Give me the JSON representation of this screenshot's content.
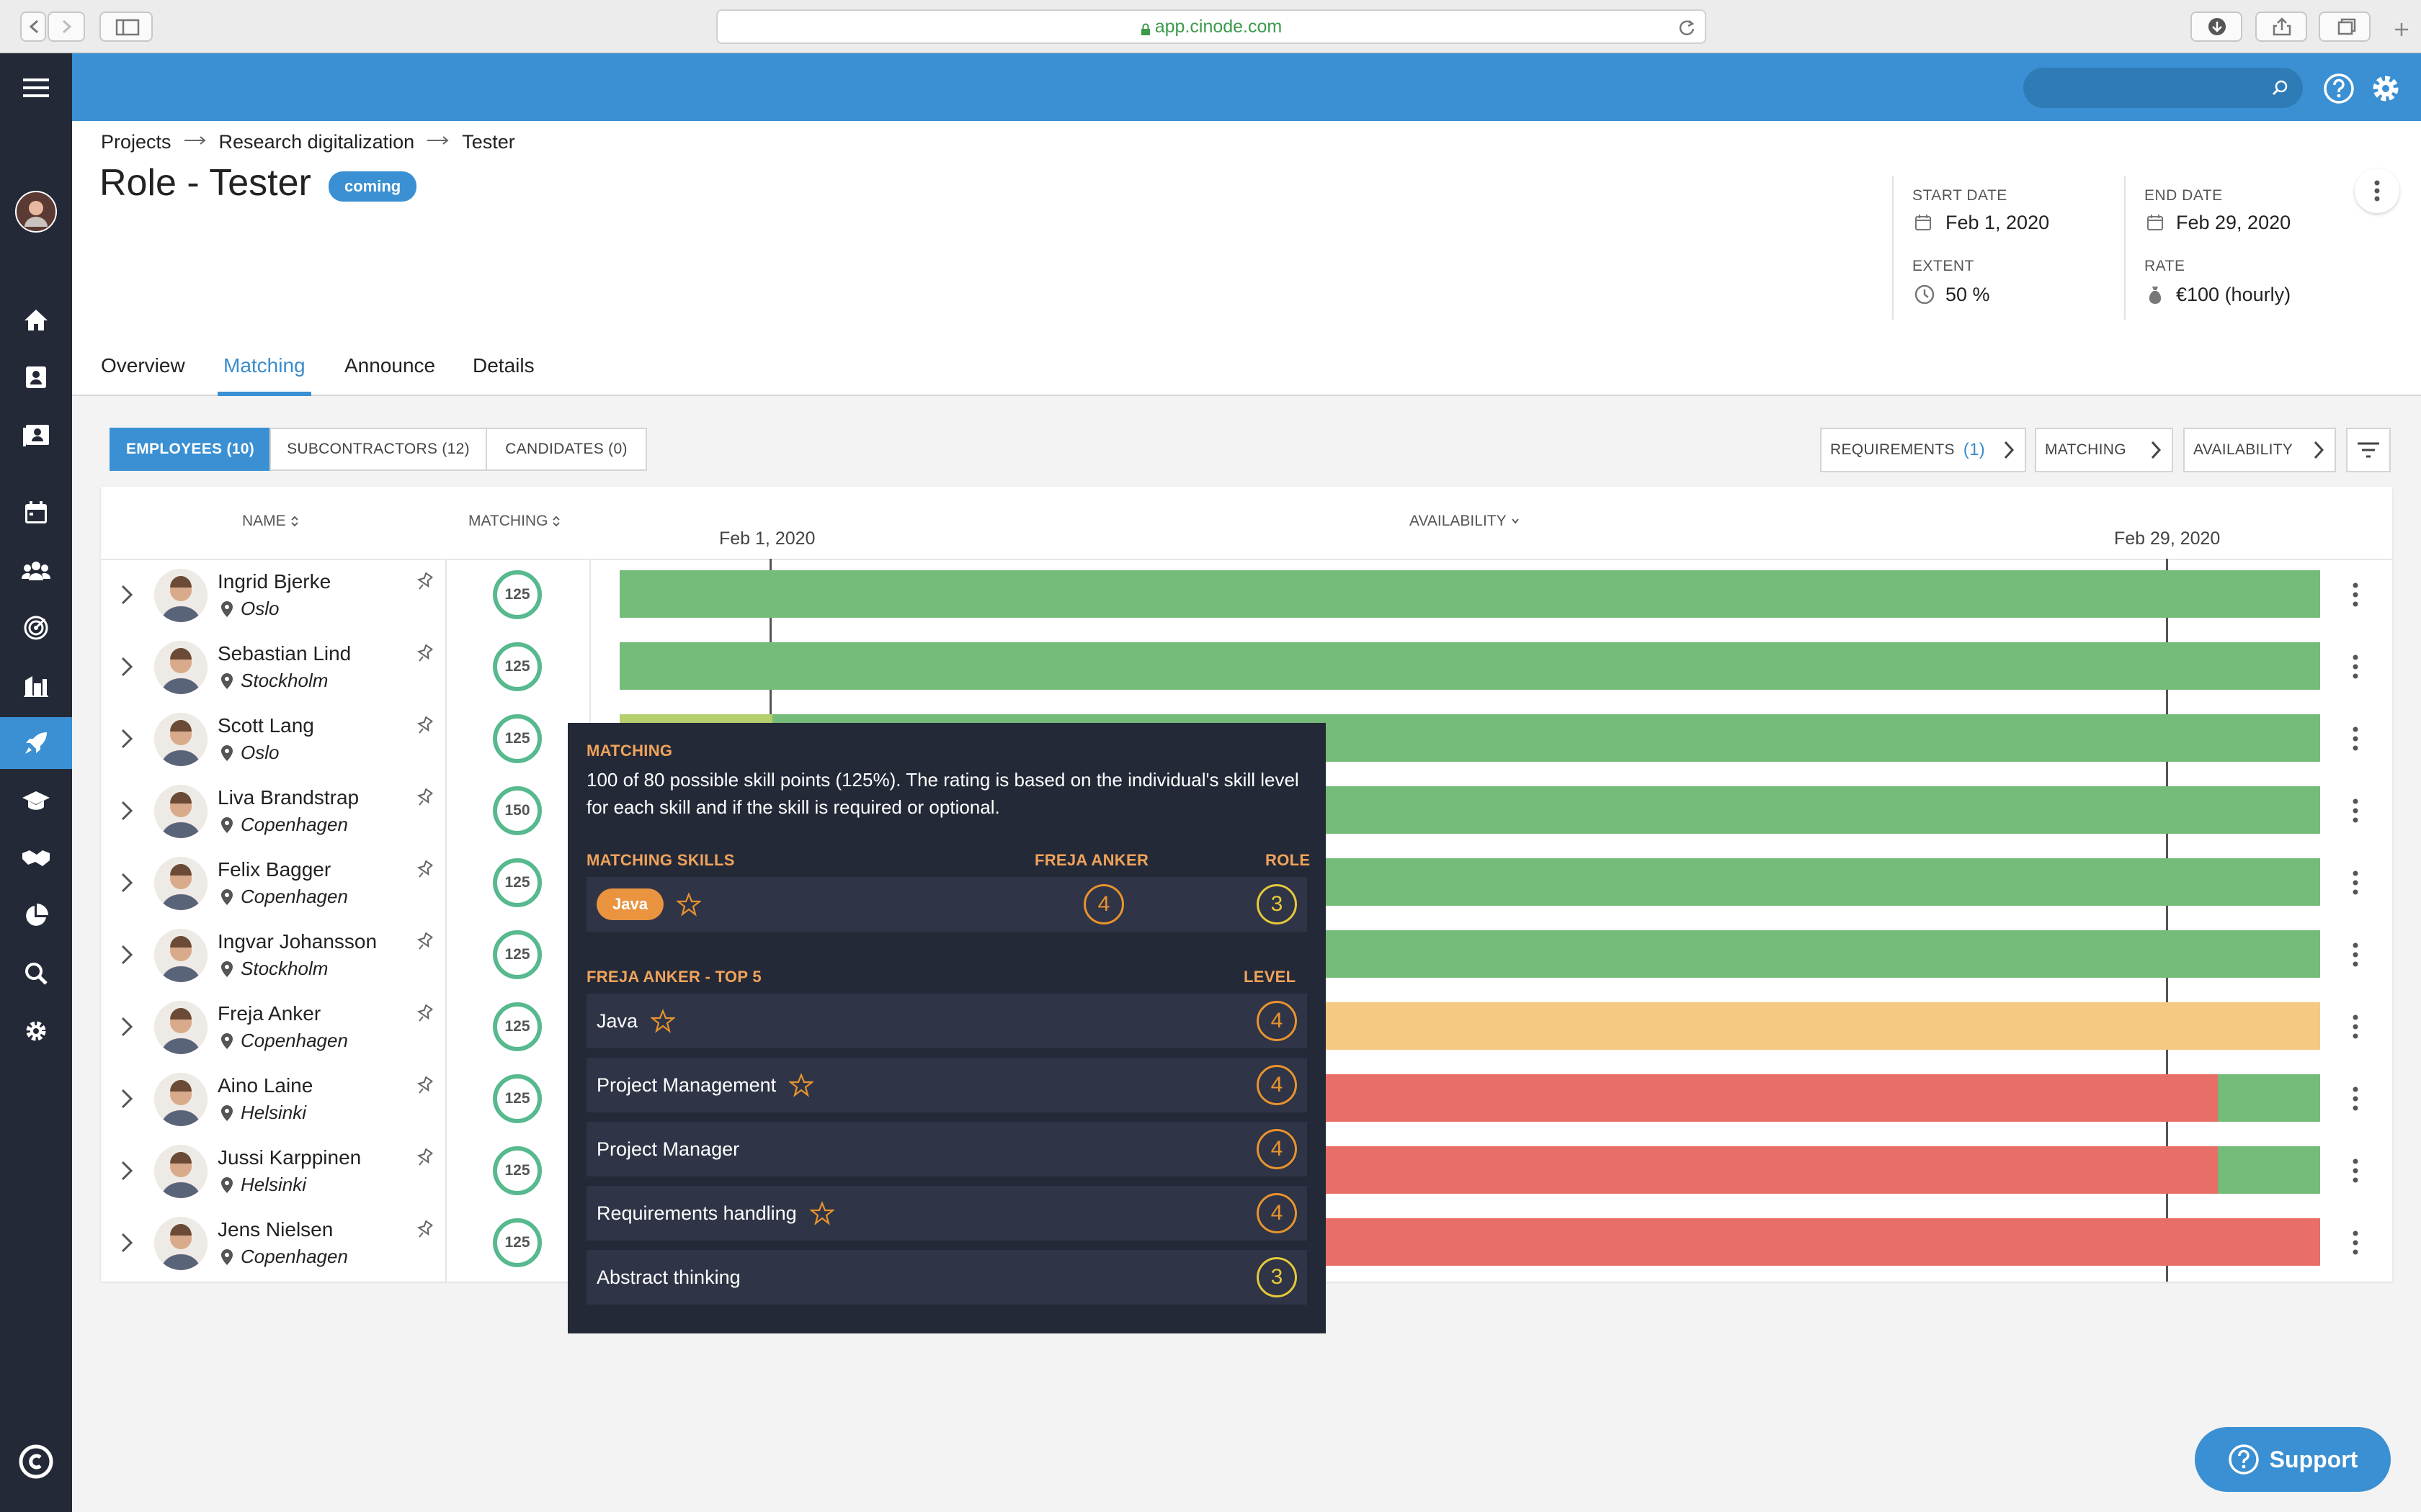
{
  "browser": {
    "url": "app.cinode.com"
  },
  "breadcrumb": [
    "Projects",
    "Research digitalization",
    "Tester"
  ],
  "page": {
    "title": "Role - Tester",
    "status": "coming"
  },
  "meta": {
    "start_label": "START DATE",
    "start": "Feb 1, 2020",
    "end_label": "END DATE",
    "end": "Feb 29, 2020",
    "extent_label": "EXTENT",
    "extent": "50 %",
    "rate_label": "RATE",
    "rate": "€100 (hourly)"
  },
  "tabs": [
    "Overview",
    "Matching",
    "Announce",
    "Details"
  ],
  "active_tab": "Matching",
  "segments": [
    "EMPLOYEES (10)",
    "SUBCONTRACTORS (12)",
    "CANDIDATES (0)"
  ],
  "filters": {
    "requirements": "REQUIREMENTS",
    "req_count": "(1)",
    "matching": "MATCHING",
    "availability": "AVAILABILITY"
  },
  "columns": {
    "name": "NAME",
    "matching": "MATCHING",
    "availability": "AVAILABILITY",
    "date_start": "Feb 1, 2020",
    "date_end": "Feb 29, 2020"
  },
  "people": [
    {
      "name": "Ingrid Bjerke",
      "city": "Oslo",
      "score": "125",
      "avail": [
        {
          "s": 0,
          "e": 1,
          "c": "green"
        }
      ]
    },
    {
      "name": "Sebastian Lind",
      "city": "Stockholm",
      "score": "125",
      "avail": [
        {
          "s": 0,
          "e": 1,
          "c": "green"
        }
      ]
    },
    {
      "name": "Scott Lang",
      "city": "Oslo",
      "score": "125",
      "avail": [
        {
          "s": 0,
          "e": 0.09,
          "c": "lightgreen"
        },
        {
          "s": 0.09,
          "e": 1,
          "c": "green"
        }
      ]
    },
    {
      "name": "Liva Brandstrap",
      "city": "Copenhagen",
      "score": "150",
      "avail": [
        {
          "s": 0,
          "e": 1,
          "c": "green"
        }
      ]
    },
    {
      "name": "Felix Bagger",
      "city": "Copenhagen",
      "score": "125",
      "avail": [
        {
          "s": 0,
          "e": 1,
          "c": "green"
        }
      ]
    },
    {
      "name": "Ingvar Johansson",
      "city": "Stockholm",
      "score": "125",
      "avail": [
        {
          "s": 0,
          "e": 1,
          "c": "green"
        }
      ]
    },
    {
      "name": "Freja Anker",
      "city": "Copenhagen",
      "score": "125",
      "avail": [
        {
          "s": 0,
          "e": 1,
          "c": "orange"
        }
      ]
    },
    {
      "name": "Aino Laine",
      "city": "Helsinki",
      "score": "125",
      "avail": [
        {
          "s": 0,
          "e": 0.94,
          "c": "red"
        },
        {
          "s": 0.94,
          "e": 1,
          "c": "green"
        }
      ]
    },
    {
      "name": "Jussi Karppinen",
      "city": "Helsinki",
      "score": "125",
      "avail": [
        {
          "s": 0,
          "e": 0.94,
          "c": "red"
        },
        {
          "s": 0.94,
          "e": 1,
          "c": "green"
        }
      ]
    },
    {
      "name": "Jens Nielsen",
      "city": "Copenhagen",
      "score": "125",
      "avail": [
        {
          "s": 0,
          "e": 1,
          "c": "red"
        }
      ]
    }
  ],
  "colors": {
    "green": "#75bb7a",
    "lightgreen": "#b5cf6e",
    "orange": "#f5c983",
    "red": "#e86e68",
    "accent": "#3a90d2",
    "sidebar": "#242938"
  },
  "tooltip": {
    "heading": "MATCHING",
    "text": "100 of 80 possible skill points (125%). The rating is based on the individual's skill level for each skill and if the skill is required or optional.",
    "skills_heading": "MATCHING SKILLS",
    "person_col": "FREJA ANKER",
    "role_col": "ROLE",
    "skill": "Java",
    "skill_person_level": "4",
    "skill_role_level": "3",
    "top_heading": "FREJA ANKER - TOP 5",
    "level_heading": "LEVEL",
    "top": [
      {
        "name": "Java",
        "level": "4",
        "star": true,
        "tone": "orange"
      },
      {
        "name": "Project Management",
        "level": "4",
        "star": true,
        "tone": "orange"
      },
      {
        "name": "Project Manager",
        "level": "4",
        "star": false,
        "tone": "orange"
      },
      {
        "name": "Requirements handling",
        "level": "4",
        "star": true,
        "tone": "orange"
      },
      {
        "name": "Abstract thinking",
        "level": "3",
        "star": false,
        "tone": "yellow"
      }
    ]
  },
  "support": {
    "label": "Support"
  }
}
